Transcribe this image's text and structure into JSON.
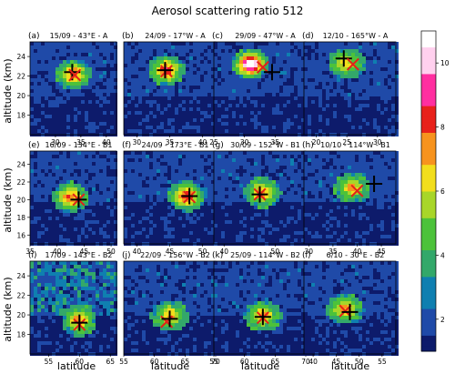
{
  "figure": {
    "title": "Aerosol scattering ratio 512",
    "xlabel": "latitude",
    "ylabel": "altitude (km)"
  },
  "colorbar": {
    "ticks": [
      "2",
      "4",
      "6",
      "8",
      "10"
    ],
    "range": [
      1,
      11
    ],
    "colormap": [
      "#0d1b6b",
      "#1f4aa8",
      "#0f7fb0",
      "#33a86a",
      "#4cc23a",
      "#a8d629",
      "#f2de1c",
      "#f7931e",
      "#e8211b",
      "#ff2fa0",
      "#ffd0ee",
      "#ffffff"
    ]
  },
  "chart_data": [
    {
      "type": "heatmap",
      "label": "(a)",
      "title": "15/09 - 43°E - A",
      "xlim": [
        25,
        42
      ],
      "ylim": [
        16,
        25.5
      ],
      "xticks": [
        "30",
        "35",
        "40"
      ],
      "yticks": [
        "18",
        "20",
        "22",
        "24"
      ],
      "plume": {
        "lat": 33.5,
        "alt": 22.2,
        "peak": 7.5
      },
      "markers": [
        {
          "color": "black",
          "lat": 33.3,
          "alt": 22.4
        },
        {
          "color": "red",
          "lat": 33.8,
          "alt": 22.1
        }
      ]
    },
    {
      "type": "heatmap",
      "label": "(b)",
      "title": "24/09 - 17°W - A",
      "xlim": [
        28,
        42
      ],
      "ylim": [
        16,
        25.5
      ],
      "xticks": [
        "30",
        "35",
        "40"
      ],
      "yticks": [],
      "plume": {
        "lat": 34.5,
        "alt": 22.6,
        "peak": 8
      },
      "markers": [
        {
          "color": "red",
          "lat": 34.5,
          "alt": 22.5
        },
        {
          "color": "black",
          "lat": 34.3,
          "alt": 22.6
        }
      ]
    },
    {
      "type": "heatmap",
      "label": "(c)",
      "title": "29/09 - 47°W - A",
      "xlim": [
        25,
        40
      ],
      "ylim": [
        16,
        25.5
      ],
      "xticks": [
        "25",
        "30",
        "35"
      ],
      "yticks": [],
      "plume": {
        "lat": 31,
        "alt": 23.2,
        "peak": 11
      },
      "markers": [
        {
          "color": "red",
          "lat": 33,
          "alt": 22.9
        },
        {
          "color": "black",
          "lat": 34.5,
          "alt": 22.4
        }
      ]
    },
    {
      "type": "heatmap",
      "label": "(d)",
      "title": "12/10 - 165°W - A",
      "xlim": [
        18,
        33
      ],
      "ylim": [
        16,
        25.5
      ],
      "xticks": [
        "20",
        "25",
        "30"
      ],
      "yticks": [],
      "plume": {
        "lat": 25,
        "alt": 23.3,
        "peak": 6
      },
      "markers": [
        {
          "color": "black",
          "lat": 24.5,
          "alt": 23.8
        },
        {
          "color": "red",
          "lat": 26,
          "alt": 23.2
        }
      ]
    },
    {
      "type": "heatmap",
      "label": "(e)",
      "title": "16/09 - 134°E - B1",
      "xlim": [
        35,
        51
      ],
      "ylim": [
        15,
        25.5
      ],
      "xticks": [
        "35",
        "40",
        "45",
        "50"
      ],
      "yticks": [
        "16",
        "18",
        "20",
        "22",
        "24"
      ],
      "plume": {
        "lat": 42.5,
        "alt": 20.3,
        "peak": 7.5
      },
      "markers": [
        {
          "color": "red",
          "lat": 44,
          "alt": 20
        },
        {
          "color": "black",
          "lat": 44,
          "alt": 20
        }
      ]
    },
    {
      "type": "heatmap",
      "label": "(f)",
      "title": "24/09 - 173°E - B1",
      "xlim": [
        38,
        52
      ],
      "ylim": [
        15,
        25.5
      ],
      "xticks": [
        "40",
        "45",
        "50"
      ],
      "yticks": [],
      "plume": {
        "lat": 47.5,
        "alt": 20.4,
        "peak": 8
      },
      "markers": [
        {
          "color": "red",
          "lat": 48,
          "alt": 20.3
        },
        {
          "color": "black",
          "lat": 48,
          "alt": 20.4
        }
      ]
    },
    {
      "type": "heatmap",
      "label": "(g)",
      "title": "30/09 - 152°W - B1",
      "xlim": [
        38,
        56
      ],
      "ylim": [
        15,
        25.5
      ],
      "xticks": [
        "40",
        "50"
      ],
      "yticks": [],
      "plume": {
        "lat": 47.5,
        "alt": 20.8,
        "peak": 7
      },
      "markers": [
        {
          "color": "red",
          "lat": 47,
          "alt": 20.6
        },
        {
          "color": "black",
          "lat": 47,
          "alt": 20.6
        }
      ]
    },
    {
      "type": "heatmap",
      "label": "(h)",
      "title": "10/10 - 114°W - B1",
      "xlim": [
        29,
        48
      ],
      "ylim": [
        15,
        25.5
      ],
      "xticks": [
        "30",
        "35",
        "40",
        "45"
      ],
      "yticks": [],
      "plume": {
        "lat": 39,
        "alt": 21.3,
        "peak": 6.5
      },
      "markers": [
        {
          "color": "red",
          "lat": 40,
          "alt": 21
        },
        {
          "color": "black",
          "lat": 43.5,
          "alt": 21.8
        }
      ]
    },
    {
      "type": "heatmap",
      "label": "(i)",
      "title": "17/09 - 143°E - B2",
      "xlim": [
        52,
        66
      ],
      "ylim": [
        16,
        25.5
      ],
      "xticks": [
        "55",
        "60",
        "65"
      ],
      "yticks": [
        "18",
        "20",
        "22",
        "24"
      ],
      "plume": {
        "lat": 60,
        "alt": 19.4,
        "peak": 7
      },
      "markers": [
        {
          "color": "red",
          "lat": 60,
          "alt": 19
        },
        {
          "color": "black",
          "lat": 60,
          "alt": 19.2
        }
      ]
    },
    {
      "type": "heatmap",
      "label": "(j)",
      "title": "22/09 - 156°W - B2",
      "xlim": [
        55,
        70
      ],
      "ylim": [
        16,
        25.5
      ],
      "xticks": [
        "55",
        "60",
        "65",
        "70"
      ],
      "yticks": [],
      "plume": {
        "lat": 62.5,
        "alt": 19.9,
        "peak": 6.5
      },
      "markers": [
        {
          "color": "red",
          "lat": 62,
          "alt": 19.3
        },
        {
          "color": "black",
          "lat": 62.5,
          "alt": 19.6
        }
      ]
    },
    {
      "type": "heatmap",
      "label": "(k)",
      "title": "25/09 - 114°W - B2",
      "xlim": [
        55,
        70
      ],
      "ylim": [
        16,
        25.5
      ],
      "xticks": [
        "55",
        "60",
        "65",
        "70"
      ],
      "yticks": [],
      "plume": {
        "lat": 63,
        "alt": 19.9,
        "peak": 6.5
      },
      "markers": [
        {
          "color": "red",
          "lat": 63,
          "alt": 19.7
        },
        {
          "color": "black",
          "lat": 63,
          "alt": 19.8
        }
      ]
    },
    {
      "type": "heatmap",
      "label": "(l)",
      "title": "6/10 - 30°E - B2",
      "xlim": [
        38,
        58
      ],
      "ylim": [
        16,
        25.5
      ],
      "xticks": [
        "40",
        "45",
        "50",
        "55"
      ],
      "yticks": [],
      "plume": {
        "lat": 47,
        "alt": 20.6,
        "peak": 6.5
      },
      "markers": [
        {
          "color": "red",
          "lat": 47,
          "alt": 20.4
        },
        {
          "color": "black",
          "lat": 48,
          "alt": 20.3
        }
      ]
    }
  ]
}
